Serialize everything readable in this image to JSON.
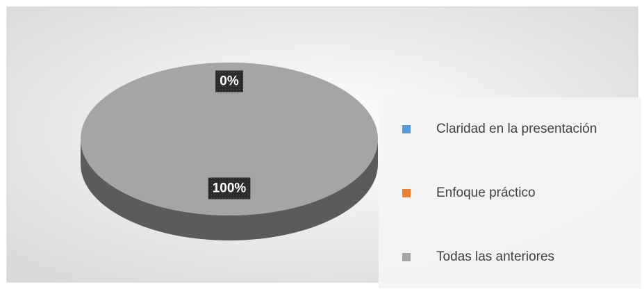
{
  "chart_data": {
    "type": "pie",
    "categories": [
      "Claridad en la presentación",
      "Enfoque práctico",
      "Todas las anteriores"
    ],
    "series": [
      {
        "values": [
          0,
          0,
          100
        ],
        "value_labels": [
          "0%",
          "0%",
          "100%"
        ],
        "colors": [
          "#5b9bd5",
          "#ed7d31",
          "#a5a5a5"
        ]
      }
    ],
    "legend": "right"
  }
}
